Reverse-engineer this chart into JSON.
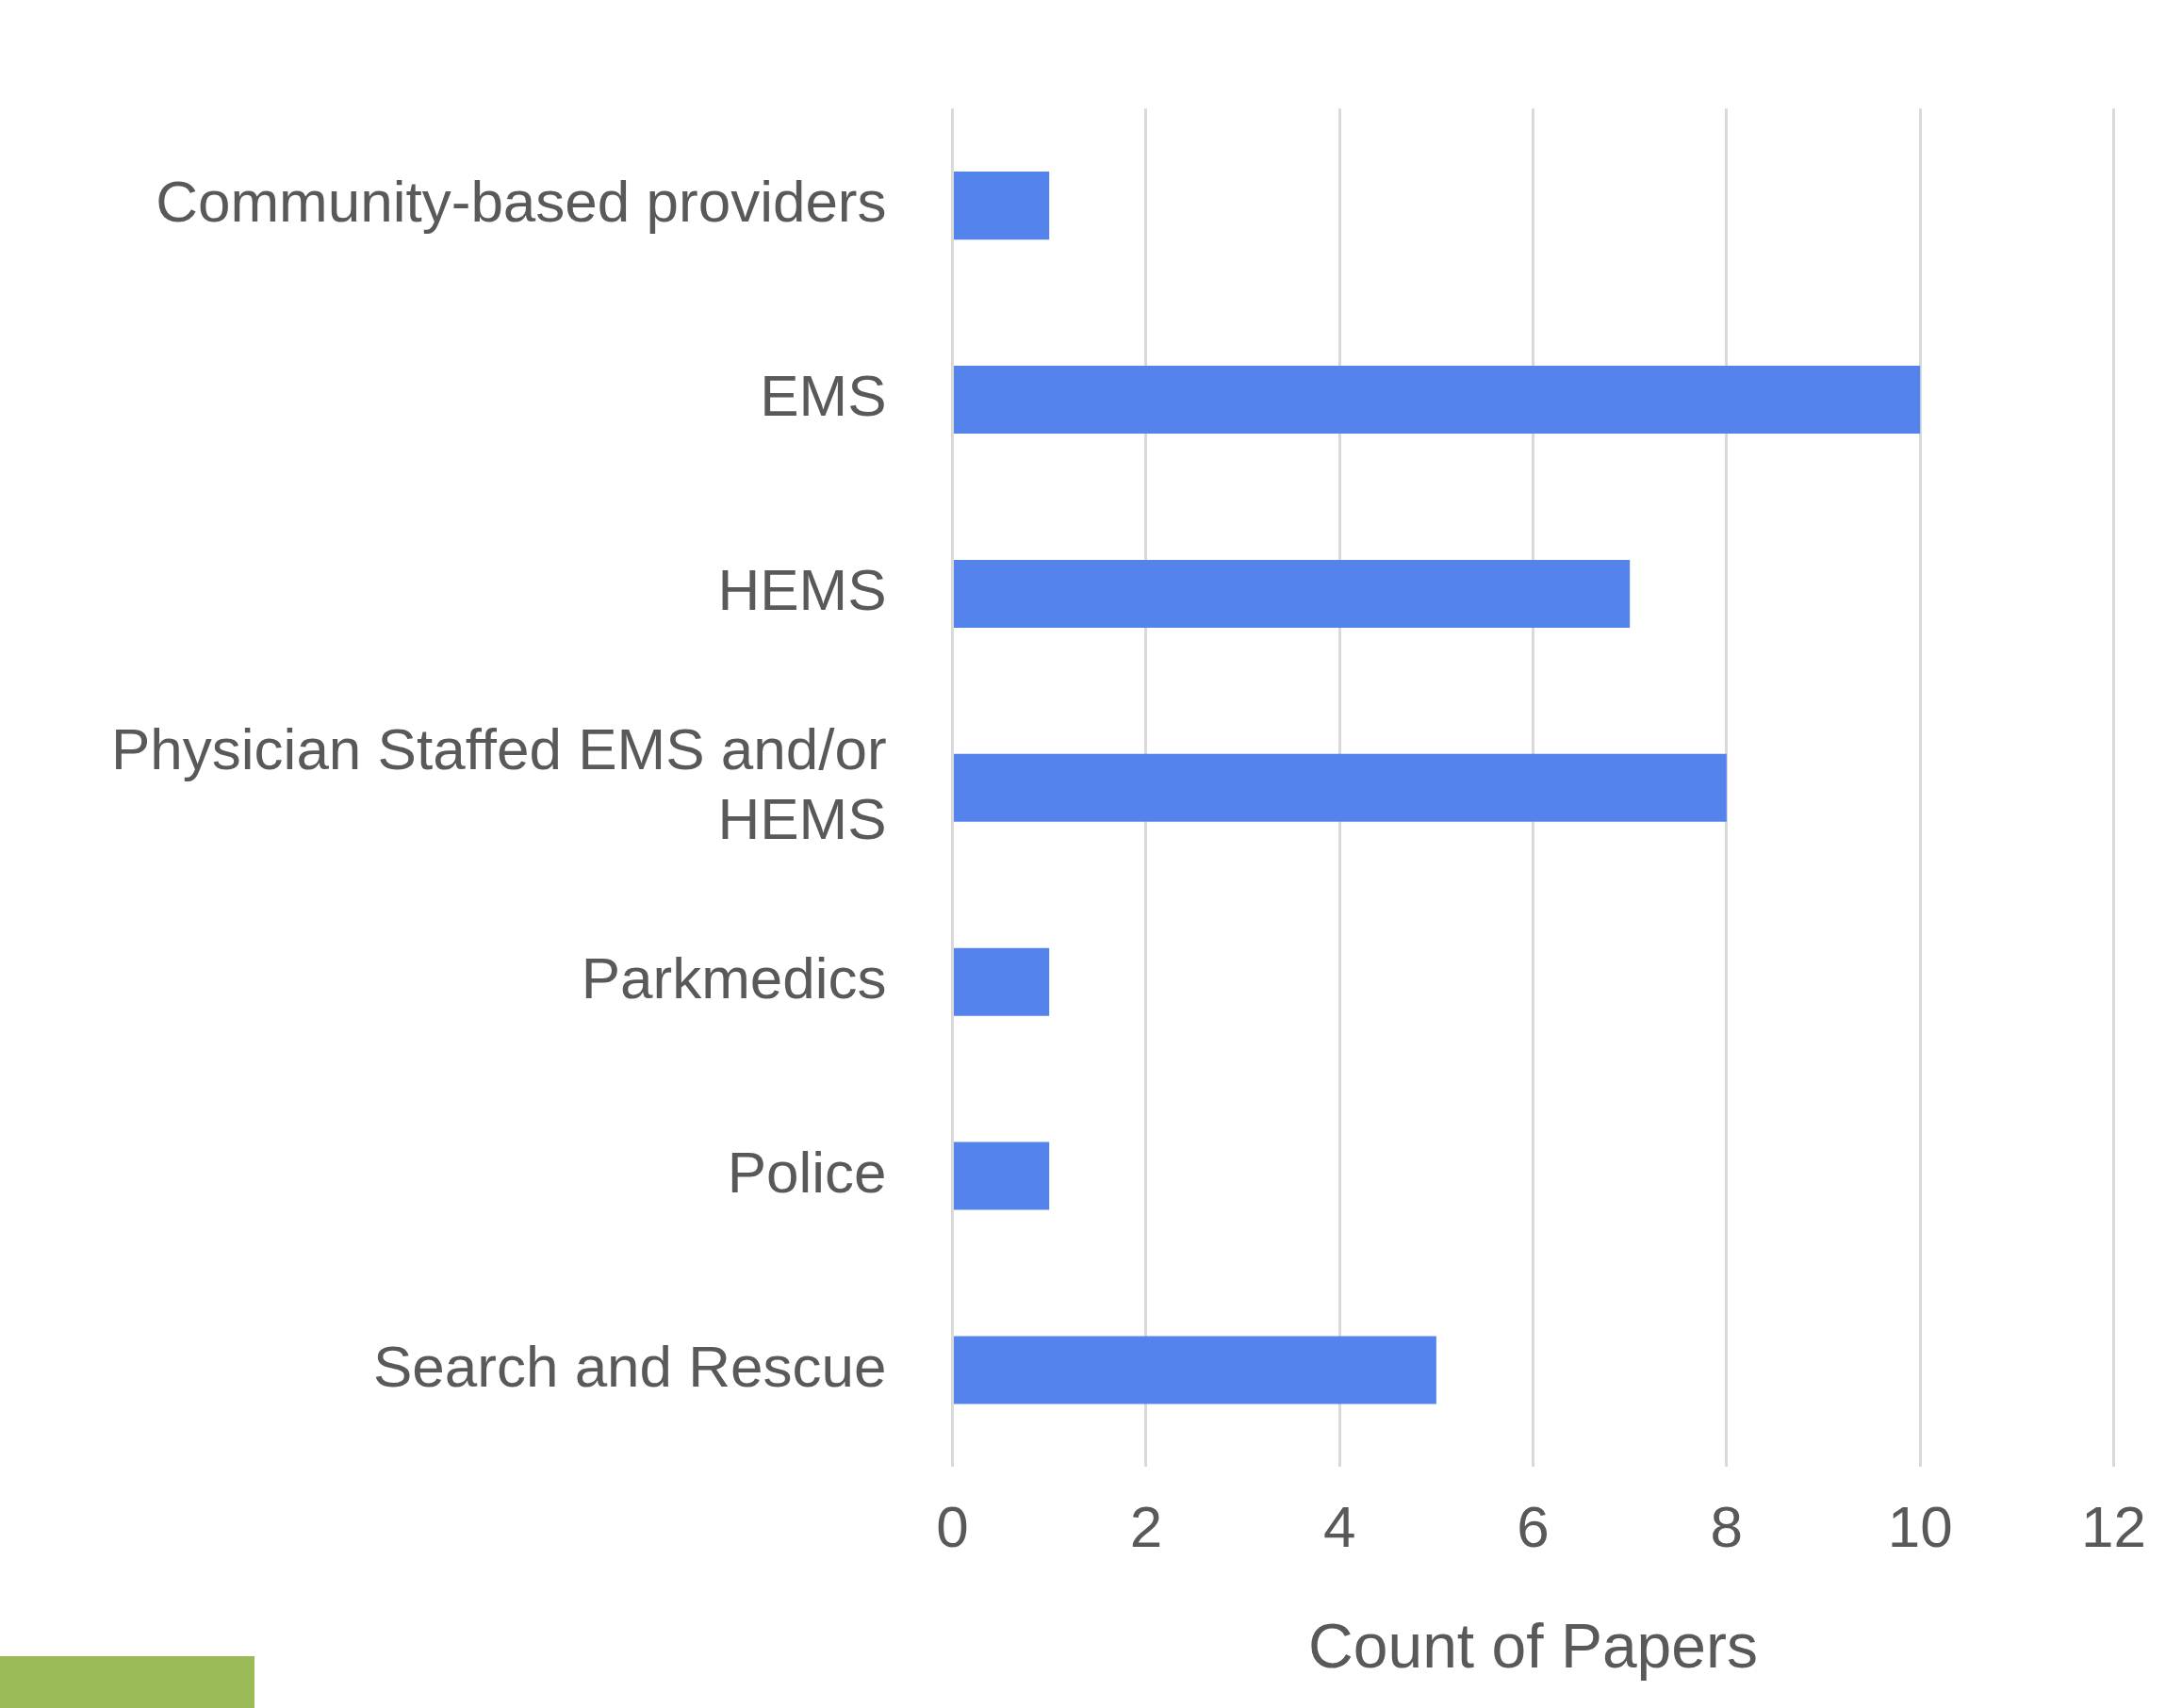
{
  "chart_data": {
    "type": "bar",
    "orientation": "horizontal",
    "xlabel": "Count of Papers",
    "categories": [
      "Community-based providers",
      "EMS",
      "HEMS",
      "Physician Staffed EMS and/or HEMS",
      "Parkmedics",
      "Police",
      "Search and Rescue"
    ],
    "values": [
      1,
      10,
      7,
      8,
      1,
      1,
      5
    ],
    "color": "#5484eb",
    "xlim": [
      0,
      12
    ],
    "xticks": [
      0,
      2,
      4,
      6,
      8,
      10,
      12
    ],
    "grid": "x",
    "legend": false
  }
}
